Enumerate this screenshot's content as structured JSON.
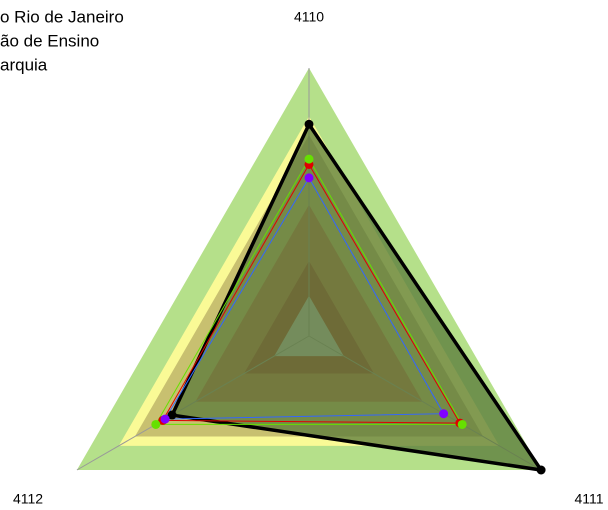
{
  "chart_data": {
    "type": "radar",
    "legend_lines": [
      "o Rio de Janeiro",
      "ão de Ensino",
      "arquia"
    ],
    "categories": [
      "4110",
      "4111",
      "4112"
    ],
    "ylim": [
      0,
      1
    ],
    "bands": [
      {
        "value": 1.0,
        "color": "#b5e08a"
      },
      {
        "value": 0.82,
        "color": "#fafa96"
      },
      {
        "value": 0.75,
        "color": "#c8c070"
      },
      {
        "value": 0.49,
        "color": "#c47a4e"
      },
      {
        "value": 0.28,
        "color": "#ad4030"
      },
      {
        "value": 0.15,
        "color": "#c3c3c3"
      }
    ],
    "series": [
      {
        "color": "#000000",
        "fill": "#5a7a3a",
        "values": [
          0.79,
          1.0,
          0.59
        ]
      },
      {
        "color": "#e00000",
        "values": [
          0.64,
          0.65,
          0.63
        ]
      },
      {
        "color": "#66e000",
        "values": [
          0.66,
          0.66,
          0.66
        ]
      },
      {
        "color": "#8000ff",
        "line_color": "#3366ff",
        "values": [
          0.59,
          0.58,
          0.62
        ]
      }
    ]
  }
}
